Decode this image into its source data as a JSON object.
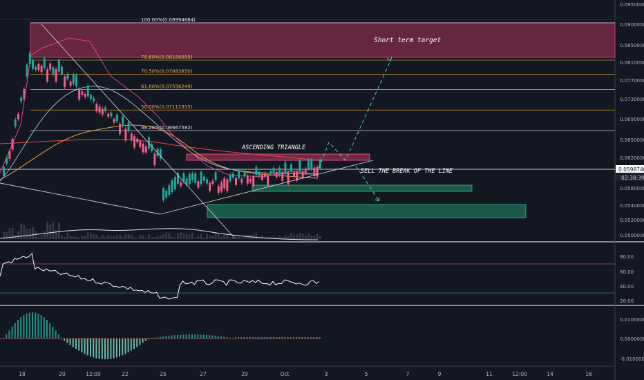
{
  "chart_data": {
    "type": "candlestick",
    "price_axis": {
      "ticks": [
        "0.09500000",
        "0.09000000",
        "0.08500000",
        "0.08100000",
        "0.07700000",
        "0.07300000",
        "0.06900000",
        "0.06500000",
        "0.06200000",
        "0.05800000",
        "0.05400000",
        "0.05200000",
        "0.05000000"
      ],
      "current_price": "0.05987400",
      "countdown": "02:38:39"
    },
    "time_axis": [
      "18",
      "20",
      "12:00",
      "22",
      "25",
      "27",
      "29",
      "Oct",
      "3",
      "5",
      "7",
      "9",
      "11",
      "12:00",
      "14",
      "16"
    ],
    "fib_levels": [
      {
        "label": "100.00%(0.08994684)",
        "value": 0.08994684,
        "color": "#e0e3eb"
      },
      {
        "label": "78.60%(0.08188859)",
        "value": 0.08188859,
        "color": "#f0b04a"
      },
      {
        "label": "70.50%(0.07883850)",
        "value": 0.0788385,
        "color": "#f0b04a"
      },
      {
        "label": "61.80%(0.07556249)",
        "value": 0.07556249,
        "color": "#f0b04a"
      },
      {
        "label": "50.00%(0.07111915)",
        "value": 0.07111915,
        "color": "#f0b04a"
      },
      {
        "label": "38.20%(0.06667582)",
        "value": 0.06667582,
        "color": "#e0e3eb"
      }
    ],
    "annotations": [
      "Short term target",
      "ASCENDING TRIANGLE",
      "SELL THE BREAK OF THE LINE"
    ],
    "rsi": {
      "ticks": [
        "80.00",
        "60.00",
        "40.00",
        "20.00"
      ]
    },
    "macd": {
      "ticks": [
        "0.01000000",
        "0.00000000",
        "-0.01000000"
      ]
    },
    "colors": {
      "up": "#26a69a",
      "down": "#ef5f8a",
      "background": "#131722",
      "target_zone": "#8b2e4d",
      "support_zone": "#1e6b55"
    }
  }
}
